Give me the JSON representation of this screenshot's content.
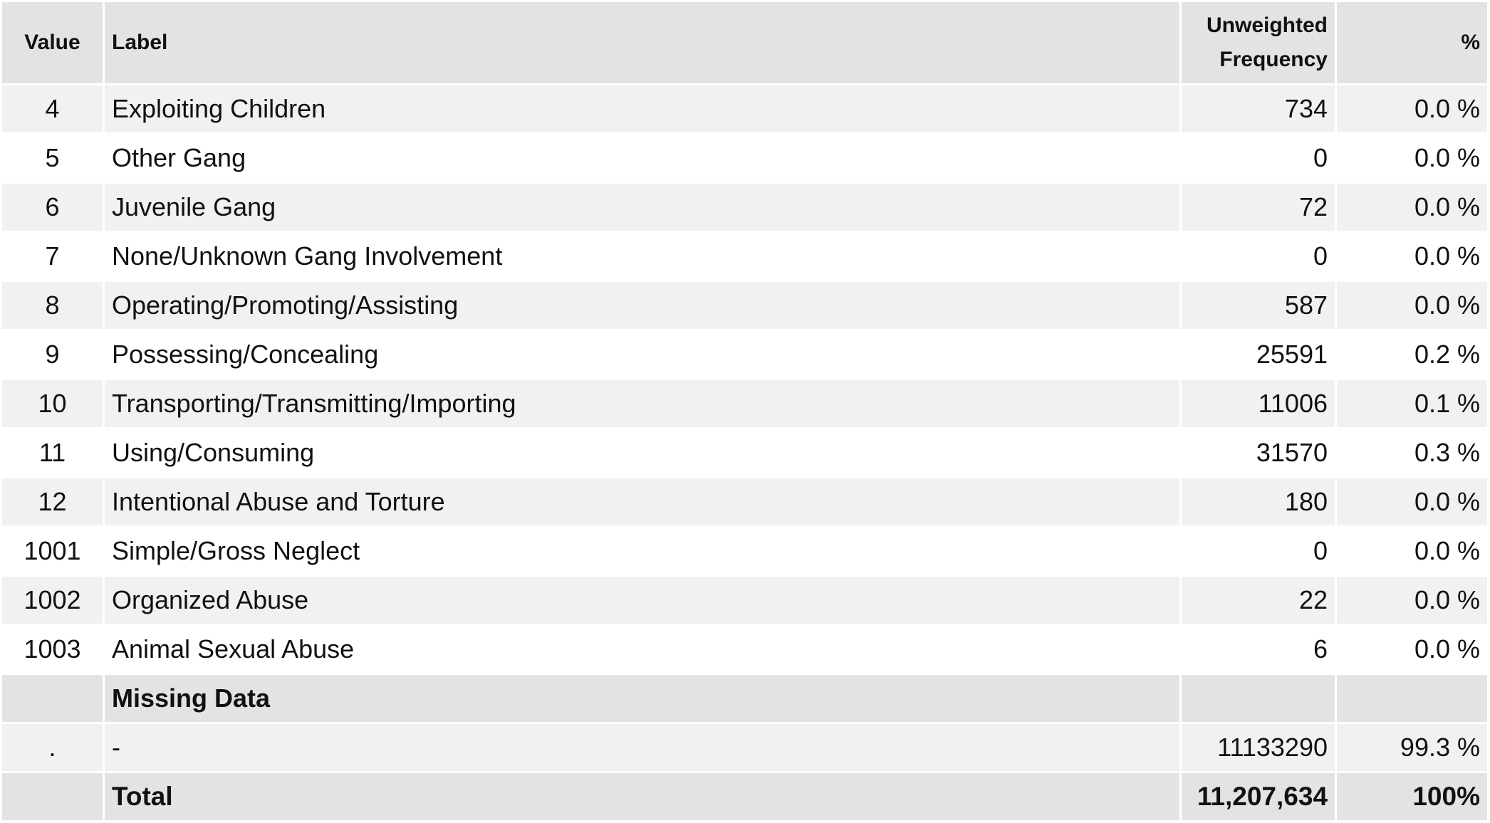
{
  "headers": {
    "value": "Value",
    "label": "Label",
    "frequency_line1": "Unweighted",
    "frequency_line2": "Frequency",
    "percent": "%"
  },
  "rows": [
    {
      "value": "4",
      "label": "Exploiting Children",
      "frequency": "734",
      "percent": "0.0 %"
    },
    {
      "value": "5",
      "label": "Other Gang",
      "frequency": "0",
      "percent": "0.0 %"
    },
    {
      "value": "6",
      "label": "Juvenile Gang",
      "frequency": "72",
      "percent": "0.0 %"
    },
    {
      "value": "7",
      "label": "None/Unknown Gang Involvement",
      "frequency": "0",
      "percent": "0.0 %"
    },
    {
      "value": "8",
      "label": "Operating/Promoting/Assisting",
      "frequency": "587",
      "percent": "0.0 %"
    },
    {
      "value": "9",
      "label": "Possessing/Concealing",
      "frequency": "25591",
      "percent": "0.2 %"
    },
    {
      "value": "10",
      "label": "Transporting/Transmitting/Importing",
      "frequency": "11006",
      "percent": "0.1 %"
    },
    {
      "value": "11",
      "label": "Using/Consuming",
      "frequency": "31570",
      "percent": "0.3 %"
    },
    {
      "value": "12",
      "label": "Intentional Abuse and Torture",
      "frequency": "180",
      "percent": "0.0 %"
    },
    {
      "value": "1001",
      "label": "Simple/Gross Neglect",
      "frequency": "0",
      "percent": "0.0 %"
    },
    {
      "value": "1002",
      "label": "Organized Abuse",
      "frequency": "22",
      "percent": "0.0 %"
    },
    {
      "value": "1003",
      "label": "Animal Sexual Abuse",
      "frequency": "6",
      "percent": "0.0 %"
    }
  ],
  "missing": {
    "heading": "Missing Data",
    "row": {
      "value": ".",
      "label": "-",
      "frequency": "11133290",
      "percent": "99.3 %"
    }
  },
  "total": {
    "label": "Total",
    "frequency": "11,207,634",
    "percent": "100%"
  }
}
